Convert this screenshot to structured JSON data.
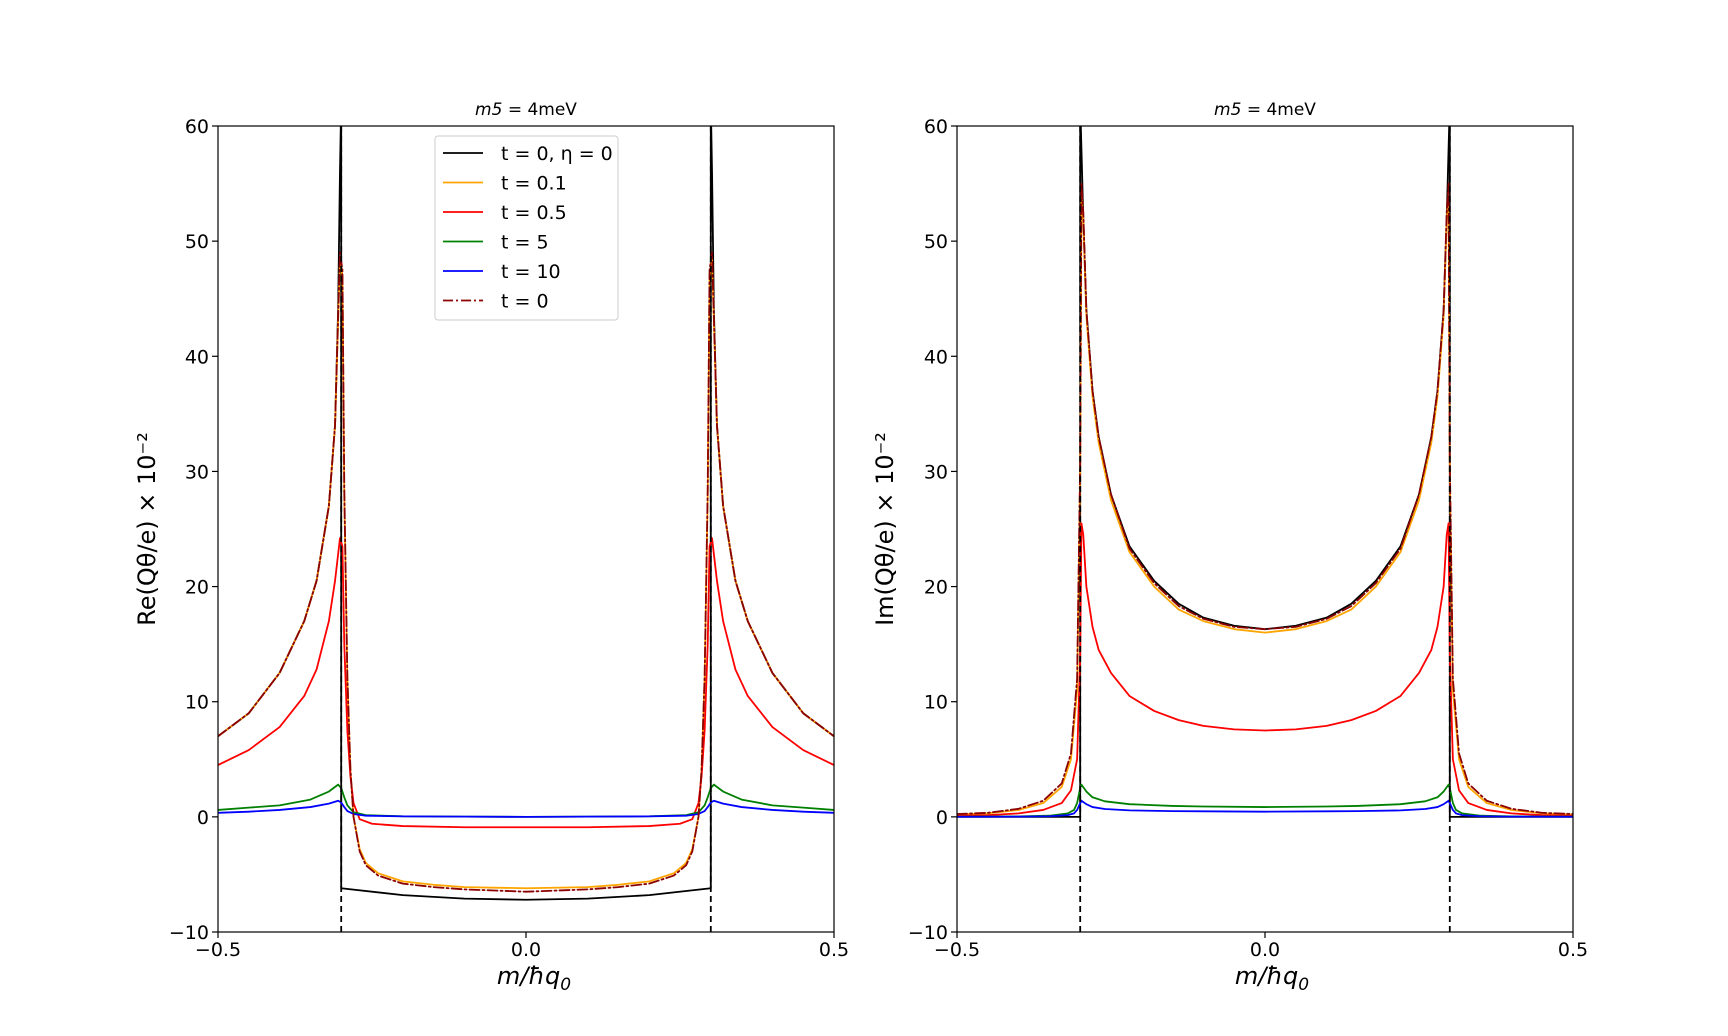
{
  "chart_data": [
    {
      "type": "line",
      "title": "m5 = 4meV",
      "title_math": "m5",
      "title_rest": " = 4meV",
      "xlabel": "m/ħq",
      "xlabel_sub": "0",
      "ylabel": "Re(Qθ/e) × 10⁻²",
      "xlim": [
        -0.5,
        0.5
      ],
      "ylim": [
        -10,
        60
      ],
      "xticks": [
        -0.5,
        0.0,
        0.5
      ],
      "xtick_labels": [
        "−0.5",
        "0.0",
        "0.5"
      ],
      "yticks": [
        -10,
        0,
        10,
        20,
        30,
        40,
        50,
        60
      ],
      "ytick_labels": [
        "−10",
        "0",
        "10",
        "20",
        "30",
        "40",
        "50",
        "60"
      ],
      "vlines": [
        -0.3,
        0.3
      ],
      "legend": {
        "location": "upper-center",
        "entries": [
          {
            "label": "t = 0, η = 0",
            "color": "#000000",
            "style": "solid"
          },
          {
            "label": "t = 0.1",
            "color": "#ffa500",
            "style": "solid"
          },
          {
            "label": "t = 0.5",
            "color": "#ff0000",
            "style": "solid"
          },
          {
            "label": "t = 5",
            "color": "#008000",
            "style": "solid"
          },
          {
            "label": "t = 10",
            "color": "#0000ff",
            "style": "solid"
          },
          {
            "label": "t = 0",
            "color": "#8b0000",
            "style": "dashdot"
          }
        ]
      },
      "series": [
        {
          "name": "t = 0, η = 0",
          "color": "#000000",
          "style": "solid",
          "x": [
            -0.5,
            -0.45,
            -0.4,
            -0.36,
            -0.34,
            -0.32,
            -0.31,
            -0.305,
            -0.302,
            -0.3,
            -0.3,
            -0.2,
            -0.1,
            0.0,
            0.1,
            0.2,
            0.3,
            0.3,
            0.302,
            0.305,
            0.31,
            0.32,
            0.34,
            0.36,
            0.4,
            0.45,
            0.5
          ],
          "y": [
            7,
            9,
            12.5,
            17,
            20.5,
            27,
            34,
            44,
            56,
            62,
            -6.2,
            -6.8,
            -7.1,
            -7.2,
            -7.1,
            -6.8,
            -6.2,
            62,
            56,
            44,
            34,
            27,
            20.5,
            17,
            12.5,
            9,
            7
          ]
        },
        {
          "name": "t = 0.1",
          "color": "#ffa500",
          "style": "solid",
          "x": [
            -0.5,
            -0.45,
            -0.4,
            -0.36,
            -0.34,
            -0.32,
            -0.31,
            -0.302,
            -0.298,
            -0.295,
            -0.29,
            -0.285,
            -0.28,
            -0.27,
            -0.26,
            -0.24,
            -0.2,
            -0.15,
            -0.1,
            0.0,
            0.1,
            0.15,
            0.2,
            0.24,
            0.26,
            0.27,
            0.28,
            0.285,
            0.29,
            0.295,
            0.298,
            0.302,
            0.31,
            0.32,
            0.34,
            0.36,
            0.4,
            0.45,
            0.5
          ],
          "y": [
            7,
            9,
            12.5,
            17,
            20.5,
            27,
            34,
            48.5,
            47,
            28,
            12,
            4,
            0,
            -2.8,
            -4,
            -4.9,
            -5.6,
            -5.9,
            -6.1,
            -6.2,
            -6.1,
            -5.9,
            -5.6,
            -4.9,
            -4,
            -2.8,
            0,
            4,
            12,
            28,
            47,
            48.5,
            34,
            27,
            20.5,
            17,
            12.5,
            9,
            7
          ]
        },
        {
          "name": "t = 0.5",
          "color": "#ff0000",
          "style": "solid",
          "x": [
            -0.5,
            -0.45,
            -0.4,
            -0.36,
            -0.34,
            -0.32,
            -0.31,
            -0.302,
            -0.298,
            -0.295,
            -0.29,
            -0.285,
            -0.28,
            -0.27,
            -0.25,
            -0.2,
            -0.1,
            0.0,
            0.1,
            0.2,
            0.25,
            0.27,
            0.28,
            0.285,
            0.29,
            0.295,
            0.298,
            0.302,
            0.31,
            0.32,
            0.34,
            0.36,
            0.4,
            0.45,
            0.5
          ],
          "y": [
            4.5,
            5.8,
            7.8,
            10.5,
            12.8,
            17,
            20.5,
            24.2,
            23.5,
            15,
            7.5,
            3.5,
            1.2,
            -0.2,
            -0.6,
            -0.8,
            -0.9,
            -0.9,
            -0.9,
            -0.8,
            -0.6,
            -0.2,
            1.2,
            3.5,
            7.5,
            15,
            23.5,
            24.2,
            20.5,
            17,
            12.8,
            10.5,
            7.8,
            5.8,
            4.5
          ]
        },
        {
          "name": "t = 5",
          "color": "#008000",
          "style": "solid",
          "x": [
            -0.5,
            -0.45,
            -0.4,
            -0.35,
            -0.32,
            -0.305,
            -0.3,
            -0.295,
            -0.29,
            -0.28,
            -0.26,
            -0.2,
            -0.1,
            0.0,
            0.1,
            0.2,
            0.26,
            0.28,
            0.29,
            0.295,
            0.3,
            0.305,
            0.32,
            0.35,
            0.4,
            0.45,
            0.5
          ],
          "y": [
            0.6,
            0.8,
            1.0,
            1.5,
            2.2,
            2.8,
            2.5,
            1.7,
            1.0,
            0.4,
            0.15,
            0.05,
            0.02,
            0.0,
            0.02,
            0.05,
            0.15,
            0.4,
            1.0,
            1.7,
            2.5,
            2.8,
            2.2,
            1.5,
            1.0,
            0.8,
            0.6
          ]
        },
        {
          "name": "t = 10",
          "color": "#0000ff",
          "style": "solid",
          "x": [
            -0.5,
            -0.45,
            -0.4,
            -0.35,
            -0.32,
            -0.305,
            -0.3,
            -0.295,
            -0.29,
            -0.28,
            -0.26,
            -0.2,
            -0.1,
            0.0,
            0.1,
            0.2,
            0.26,
            0.28,
            0.29,
            0.295,
            0.3,
            0.305,
            0.32,
            0.35,
            0.4,
            0.45,
            0.5
          ],
          "y": [
            0.35,
            0.45,
            0.6,
            0.85,
            1.15,
            1.4,
            1.25,
            0.85,
            0.5,
            0.25,
            0.1,
            0.04,
            0.02,
            0.0,
            0.02,
            0.04,
            0.1,
            0.25,
            0.5,
            0.85,
            1.25,
            1.4,
            1.15,
            0.85,
            0.6,
            0.45,
            0.35
          ]
        },
        {
          "name": "t = 0",
          "color": "#8b0000",
          "style": "dashdot",
          "x": [
            -0.5,
            -0.45,
            -0.4,
            -0.36,
            -0.34,
            -0.32,
            -0.31,
            -0.302,
            -0.298,
            -0.295,
            -0.29,
            -0.285,
            -0.28,
            -0.27,
            -0.26,
            -0.24,
            -0.2,
            -0.15,
            -0.1,
            0.0,
            0.1,
            0.15,
            0.2,
            0.24,
            0.26,
            0.27,
            0.28,
            0.285,
            0.29,
            0.295,
            0.298,
            0.302,
            0.31,
            0.32,
            0.34,
            0.36,
            0.4,
            0.45,
            0.5
          ],
          "y": [
            7,
            9,
            12.5,
            17,
            20.5,
            27,
            34,
            49,
            47.5,
            28.5,
            12.2,
            4.1,
            0,
            -3,
            -4.2,
            -5.1,
            -5.8,
            -6.1,
            -6.3,
            -6.5,
            -6.3,
            -6.1,
            -5.8,
            -5.1,
            -4.2,
            -3,
            0,
            4.1,
            12.2,
            28.5,
            47.5,
            49,
            34,
            27,
            20.5,
            17,
            12.5,
            9,
            7
          ]
        }
      ]
    },
    {
      "type": "line",
      "title": "m5 = 4meV",
      "title_math": "m5",
      "title_rest": " = 4meV",
      "xlabel": "m/ħq",
      "xlabel_sub": "0",
      "ylabel": "Im(Qθ/e) × 10⁻²",
      "xlim": [
        -0.5,
        0.5
      ],
      "ylim": [
        -10,
        60
      ],
      "xticks": [
        -0.5,
        0.0,
        0.5
      ],
      "xtick_labels": [
        "−0.5",
        "0.0",
        "0.5"
      ],
      "yticks": [
        -10,
        0,
        10,
        20,
        30,
        40,
        50,
        60
      ],
      "ytick_labels": [
        "−10",
        "0",
        "10",
        "20",
        "30",
        "40",
        "50",
        "60"
      ],
      "vlines": [
        -0.3,
        0.3
      ],
      "series": [
        {
          "name": "t = 0, η = 0",
          "color": "#000000",
          "style": "solid",
          "x": [
            -0.5,
            -0.3,
            -0.3,
            -0.298,
            -0.295,
            -0.29,
            -0.28,
            -0.27,
            -0.25,
            -0.22,
            -0.18,
            -0.14,
            -0.1,
            -0.05,
            0.0,
            0.05,
            0.1,
            0.14,
            0.18,
            0.22,
            0.25,
            0.27,
            0.28,
            0.29,
            0.295,
            0.298,
            0.3,
            0.3,
            0.5
          ],
          "y": [
            0,
            0,
            62,
            58,
            52,
            44,
            37,
            33,
            28,
            23.5,
            20.5,
            18.5,
            17.3,
            16.6,
            16.3,
            16.6,
            17.3,
            18.5,
            20.5,
            23.5,
            28,
            33,
            37,
            44,
            52,
            58,
            62,
            0,
            0
          ]
        },
        {
          "name": "t = 0.1",
          "color": "#ffa500",
          "style": "solid",
          "x": [
            -0.5,
            -0.45,
            -0.4,
            -0.36,
            -0.33,
            -0.315,
            -0.305,
            -0.3,
            -0.298,
            -0.295,
            -0.29,
            -0.28,
            -0.27,
            -0.25,
            -0.22,
            -0.18,
            -0.14,
            -0.1,
            -0.05,
            0.0,
            0.05,
            0.1,
            0.14,
            0.18,
            0.22,
            0.25,
            0.27,
            0.28,
            0.29,
            0.295,
            0.298,
            0.3,
            0.305,
            0.315,
            0.33,
            0.36,
            0.4,
            0.45,
            0.5
          ],
          "y": [
            0.2,
            0.3,
            0.6,
            1.2,
            2.6,
            5,
            11,
            30,
            54,
            52,
            43.5,
            36.5,
            32.5,
            27.5,
            23,
            20,
            18,
            17,
            16.3,
            16.0,
            16.3,
            17,
            18,
            20,
            23,
            27.5,
            32.5,
            36.5,
            43.5,
            52,
            54,
            30,
            11,
            5,
            2.6,
            1.2,
            0.6,
            0.3,
            0.2
          ]
        },
        {
          "name": "t = 0.5",
          "color": "#ff0000",
          "style": "solid",
          "x": [
            -0.5,
            -0.45,
            -0.4,
            -0.36,
            -0.33,
            -0.315,
            -0.305,
            -0.3,
            -0.298,
            -0.295,
            -0.29,
            -0.28,
            -0.27,
            -0.25,
            -0.22,
            -0.18,
            -0.14,
            -0.1,
            -0.05,
            0.0,
            0.05,
            0.1,
            0.14,
            0.18,
            0.22,
            0.25,
            0.27,
            0.28,
            0.29,
            0.295,
            0.298,
            0.3,
            0.305,
            0.315,
            0.33,
            0.36,
            0.4,
            0.45,
            0.5
          ],
          "y": [
            0.1,
            0.15,
            0.3,
            0.6,
            1.2,
            2.3,
            5,
            14,
            25.5,
            24.5,
            20,
            16.5,
            14.5,
            12.5,
            10.5,
            9.2,
            8.4,
            7.9,
            7.6,
            7.5,
            7.6,
            7.9,
            8.4,
            9.2,
            10.5,
            12.5,
            14.5,
            16.5,
            20,
            24.5,
            25.5,
            14,
            5,
            2.3,
            1.2,
            0.6,
            0.3,
            0.15,
            0.1
          ]
        },
        {
          "name": "t = 5",
          "color": "#008000",
          "style": "solid",
          "x": [
            -0.5,
            -0.4,
            -0.35,
            -0.32,
            -0.31,
            -0.305,
            -0.3,
            -0.298,
            -0.29,
            -0.28,
            -0.26,
            -0.22,
            -0.15,
            -0.1,
            0.0,
            0.1,
            0.15,
            0.22,
            0.26,
            0.28,
            0.29,
            0.298,
            0.3,
            0.305,
            0.31,
            0.32,
            0.35,
            0.4,
            0.5
          ],
          "y": [
            0.02,
            0.04,
            0.1,
            0.3,
            0.6,
            1.2,
            2.5,
            2.8,
            2.2,
            1.7,
            1.35,
            1.1,
            0.95,
            0.9,
            0.85,
            0.9,
            0.95,
            1.1,
            1.35,
            1.7,
            2.2,
            2.8,
            2.5,
            1.2,
            0.6,
            0.3,
            0.1,
            0.04,
            0.02
          ]
        },
        {
          "name": "t = 10",
          "color": "#0000ff",
          "style": "solid",
          "x": [
            -0.5,
            -0.4,
            -0.35,
            -0.32,
            -0.31,
            -0.305,
            -0.3,
            -0.298,
            -0.29,
            -0.28,
            -0.26,
            -0.22,
            -0.15,
            -0.1,
            0.0,
            0.1,
            0.15,
            0.22,
            0.26,
            0.28,
            0.29,
            0.298,
            0.3,
            0.305,
            0.31,
            0.32,
            0.35,
            0.4,
            0.5
          ],
          "y": [
            0.01,
            0.02,
            0.05,
            0.15,
            0.3,
            0.6,
            1.2,
            1.4,
            1.1,
            0.85,
            0.68,
            0.56,
            0.5,
            0.48,
            0.45,
            0.48,
            0.5,
            0.56,
            0.68,
            0.85,
            1.1,
            1.4,
            1.2,
            0.6,
            0.3,
            0.15,
            0.05,
            0.02,
            0.01
          ]
        },
        {
          "name": "t = 0",
          "color": "#8b0000",
          "style": "dashdot",
          "x": [
            -0.5,
            -0.45,
            -0.4,
            -0.36,
            -0.33,
            -0.315,
            -0.305,
            -0.3,
            -0.298,
            -0.295,
            -0.29,
            -0.28,
            -0.27,
            -0.25,
            -0.22,
            -0.18,
            -0.14,
            -0.1,
            -0.05,
            0.0,
            0.05,
            0.1,
            0.14,
            0.18,
            0.22,
            0.25,
            0.27,
            0.28,
            0.29,
            0.295,
            0.298,
            0.3,
            0.305,
            0.315,
            0.33,
            0.36,
            0.4,
            0.45,
            0.5
          ],
          "y": [
            0.25,
            0.35,
            0.7,
            1.4,
            2.9,
            5.5,
            12,
            31,
            55,
            52.5,
            44,
            37,
            33,
            28,
            23.3,
            20.3,
            18.3,
            17.2,
            16.5,
            16.3,
            16.5,
            17.2,
            18.3,
            20.3,
            23.3,
            28,
            33,
            37,
            44,
            52.5,
            55,
            31,
            12,
            5.5,
            2.9,
            1.4,
            0.7,
            0.35,
            0.25
          ]
        }
      ]
    }
  ]
}
